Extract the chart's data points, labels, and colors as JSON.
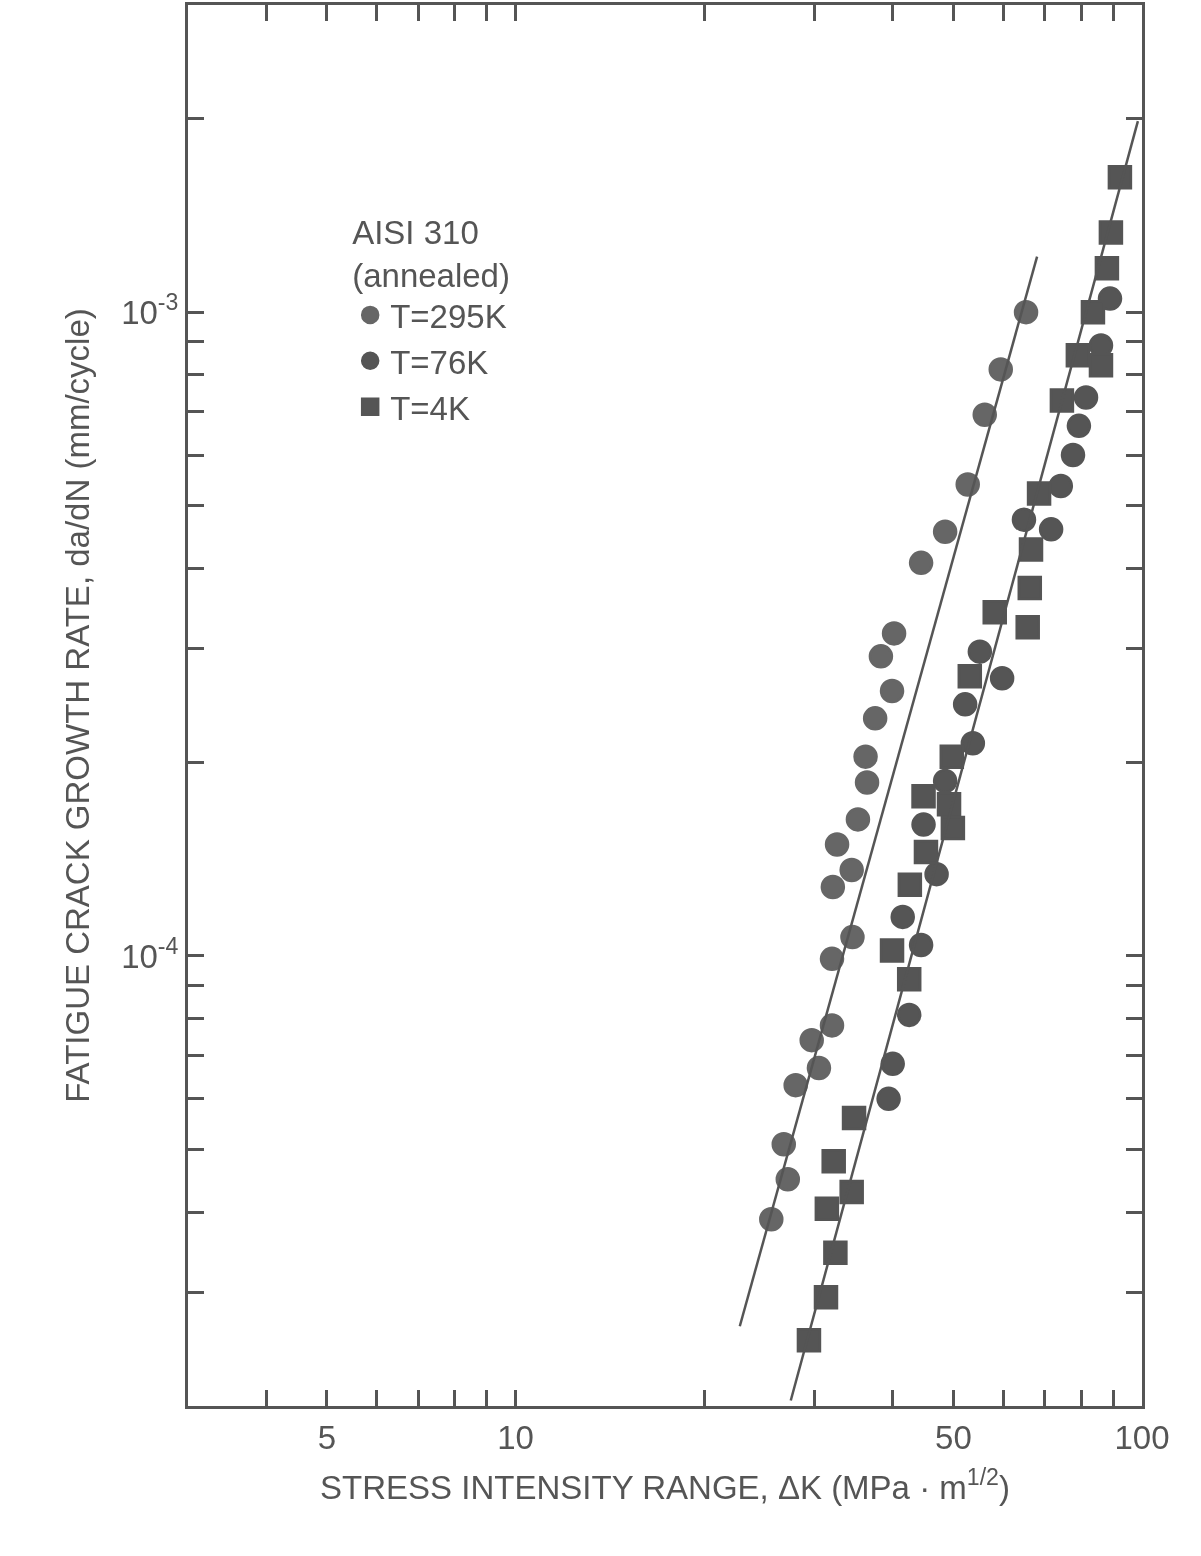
{
  "chart_data": {
    "type": "scatter",
    "xlabel": "STRESS INTENSITY RANGE, ΔK (MPa · m$^{1/2}$)",
    "ylabel": "FATIGUE CRACK GROWTH RATE, da/dN (mm/cycle)",
    "legend_title": "AISI 310\n(annealed)",
    "log": "xy",
    "legend": "top left",
    "xlim": [
      3,
      100
    ],
    "ylim": [
      2e-05,
      0.003
    ],
    "xticks": [
      {
        "value": 4,
        "label": null
      },
      5,
      {
        "value": 6,
        "label": null
      },
      {
        "value": 7,
        "label": null
      },
      {
        "value": 8,
        "label": null
      },
      {
        "value": 9,
        "label": null
      },
      10,
      {
        "value": 20,
        "label": null
      },
      {
        "value": 30,
        "label": null
      },
      {
        "value": 40,
        "label": null
      },
      50,
      {
        "value": 60,
        "label": null
      },
      {
        "value": 70,
        "label": null
      },
      {
        "value": 80,
        "label": null
      },
      {
        "value": 90,
        "label": null
      },
      100
    ],
    "yticks": [
      {
        "value": 3e-05,
        "label": null
      },
      {
        "value": 4e-05,
        "label": null
      },
      {
        "value": 5e-05,
        "label": null
      },
      {
        "value": 6e-05,
        "label": null
      },
      {
        "value": 7e-05,
        "label": null
      },
      {
        "value": 8e-05,
        "label": null
      },
      {
        "value": 9e-05,
        "label": null
      },
      {
        "value": 0.0001,
        "label": "10$^{-4}$"
      },
      {
        "value": 0.0002,
        "label": null
      },
      {
        "value": 0.0003,
        "label": null
      },
      {
        "value": 0.0004,
        "label": null
      },
      {
        "value": 0.0005,
        "label": null
      },
      {
        "value": 0.0006,
        "label": null
      },
      {
        "value": 0.0007,
        "label": null
      },
      {
        "value": 0.0008,
        "label": null
      },
      {
        "value": 0.0009,
        "label": null
      },
      {
        "value": 0.001,
        "label": "10$^{-3}$"
      },
      {
        "value": 0.002,
        "label": null
      }
    ],
    "series": [
      {
        "name": "T=295K",
        "marker": "circle",
        "color": "#666666",
        "x": [
          65.3,
          59.5,
          56.1,
          52.7,
          48.5,
          44.4,
          40.2,
          38.3,
          39.9,
          37.5,
          36.2,
          36.4,
          35.2,
          32.6,
          34.4,
          32.1,
          34.5,
          32.0,
          32.0,
          29.7,
          30.5,
          28.0,
          26.8,
          27.2,
          25.6
        ],
        "values": [
          0.001,
          0.000815,
          0.000693,
          0.00054,
          0.000456,
          0.000408,
          0.000317,
          0.000292,
          0.000258,
          0.000234,
          0.000204,
          0.000186,
          0.000163,
          0.000149,
          0.000136,
          0.000128,
          0.000107,
          9.9e-05,
          7.8e-05,
          7.4e-05,
          6.7e-05,
          6.3e-05,
          5.1e-05,
          4.5e-05,
          3.9e-05
        ]
      },
      {
        "name": "T=76K",
        "marker": "circle",
        "color": "#555555",
        "x": [
          88.9,
          86.0,
          81.4,
          79.3,
          77.6,
          74.2,
          71.6,
          64.8,
          55.1,
          59.8,
          52.2,
          53.7,
          48.5,
          44.8,
          47.0,
          41.5,
          44.4,
          42.5,
          40.0,
          39.4
        ],
        "values": [
          0.00105,
          0.000888,
          0.000737,
          0.000666,
          0.0006,
          0.000537,
          0.00046,
          0.000476,
          0.000297,
          0.00027,
          0.000246,
          0.000214,
          0.000187,
          0.00016,
          0.000134,
          0.000115,
          0.000104,
          8.1e-05,
          6.8e-05,
          6e-05
        ]
      },
      {
        "name": "T=4K",
        "marker": "square",
        "color": "#555555",
        "x": [
          92.2,
          89.2,
          87.9,
          83.5,
          79.0,
          86.0,
          74.5,
          68.5,
          66.5,
          66.2,
          58.2,
          65.7,
          53.1,
          49.7,
          44.8,
          49.2,
          49.9,
          45.2,
          42.6,
          39.9,
          42.5,
          34.7,
          32.2,
          34.4,
          31.4,
          32.4,
          31.3,
          29.4
        ],
        "values": [
          0.00162,
          0.00133,
          0.00117,
          0.001,
          0.000857,
          0.000827,
          0.000729,
          0.000523,
          0.000428,
          0.000373,
          0.000342,
          0.000324,
          0.000272,
          0.000204,
          0.000177,
          0.000172,
          0.000158,
          0.000145,
          0.000129,
          0.000102,
          9.2e-05,
          5.6e-05,
          4.8e-05,
          4.3e-05,
          4.05e-05,
          3.46e-05,
          2.95e-05,
          2.53e-05
        ]
      },
      {
        "type": "line",
        "marker": "none",
        "line_style": "solid",
        "color": "#555555",
        "x": [
          22.8,
          68.0
        ],
        "values": [
          2.66e-05,
          0.00122
        ]
      },
      {
        "type": "line",
        "marker": "none",
        "line_style": "solid",
        "color": "#555555",
        "x": [
          27.5,
          98.5
        ],
        "values": [
          2.04e-05,
          0.00198
        ]
      }
    ]
  }
}
